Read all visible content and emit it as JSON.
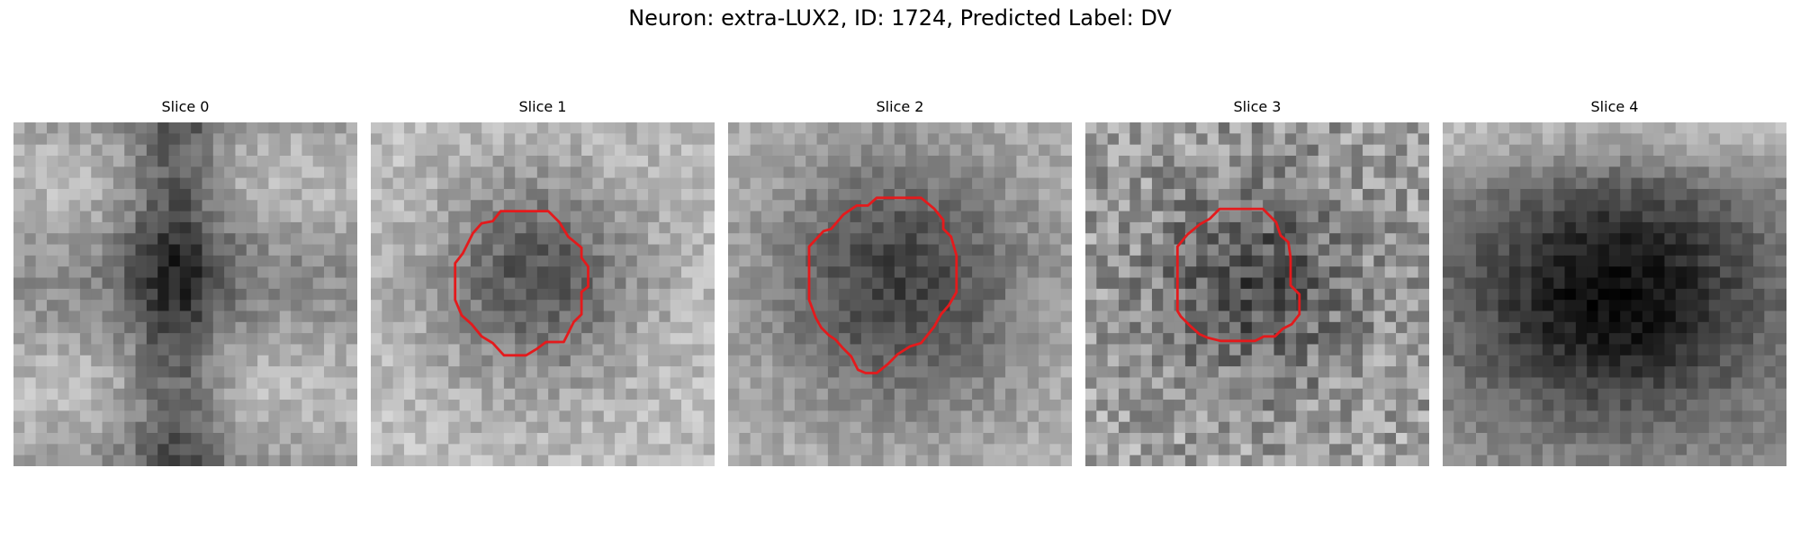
{
  "title": "Neuron: extra-LUX2, ID: 1724, Predicted Label: DV",
  "grid_size": 31,
  "contour_color": "#e41a1c",
  "slices": [
    {
      "label": "Slice 0",
      "has_contour": false,
      "style": "dark-vertical-band"
    },
    {
      "label": "Slice 1",
      "has_contour": true,
      "style": "dark-blob-light-surround"
    },
    {
      "label": "Slice 2",
      "has_contour": true,
      "style": "dark-blob-with-halo"
    },
    {
      "label": "Slice 3",
      "has_contour": true,
      "style": "noisy-dark-center"
    },
    {
      "label": "Slice 4",
      "has_contour": false,
      "style": "large-dark-mass"
    }
  ]
}
